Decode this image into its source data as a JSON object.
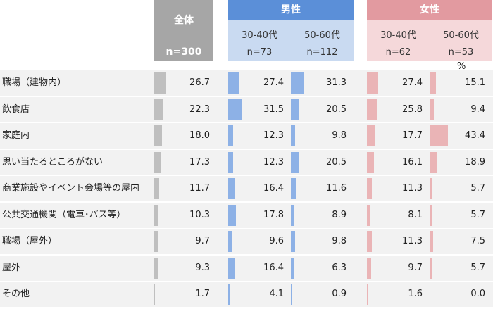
{
  "unit": "%",
  "header": {
    "total_label": "全体",
    "total_n": "n=300",
    "male_label": "男性",
    "female_label": "女性",
    "male_cols": [
      {
        "age": "30-40代",
        "n": "n=73"
      },
      {
        "age": "50-60代",
        "n": "n=112"
      }
    ],
    "female_cols": [
      {
        "age": "30-40代",
        "n": "n=62"
      },
      {
        "age": "50-60代",
        "n": "n=53"
      }
    ]
  },
  "colors": {
    "total": "#bfbfbf",
    "male": "#8db1e6",
    "female": "#eab4b6",
    "stripe": "#f2f2f2"
  },
  "chart_data": {
    "type": "table",
    "categories": [
      "職場（建物内）",
      "飲食店",
      "家庭内",
      "思い当たるところがない",
      "商業施設やイベント会場等の屋内",
      "公共交通機関（電車･バス等）",
      "職場（屋外）",
      "屋外",
      "その他"
    ],
    "series": [
      {
        "name": "全体",
        "values": [
          26.7,
          22.3,
          18.0,
          17.3,
          11.7,
          10.3,
          9.7,
          9.3,
          1.7
        ]
      },
      {
        "name": "男性 30-40代",
        "values": [
          27.4,
          31.5,
          12.3,
          12.3,
          16.4,
          17.8,
          9.6,
          16.4,
          4.1
        ]
      },
      {
        "name": "男性 50-60代",
        "values": [
          31.3,
          20.5,
          9.8,
          20.5,
          11.6,
          8.9,
          9.8,
          6.3,
          0.9
        ]
      },
      {
        "name": "女性 30-40代",
        "values": [
          27.4,
          25.8,
          17.7,
          16.1,
          11.3,
          8.1,
          11.3,
          9.7,
          1.6
        ]
      },
      {
        "name": "女性 50-60代",
        "values": [
          15.1,
          9.4,
          43.4,
          18.9,
          5.7,
          5.7,
          7.5,
          5.7,
          0.0
        ]
      }
    ]
  }
}
